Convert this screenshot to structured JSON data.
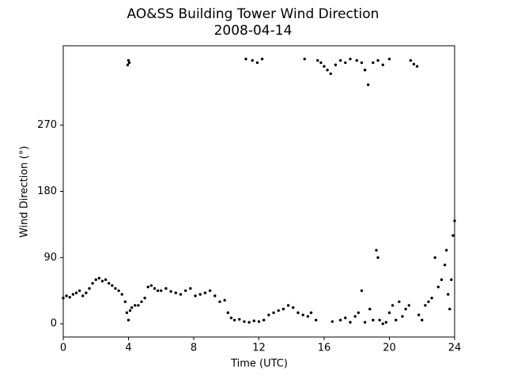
{
  "chart_data": {
    "type": "scatter",
    "title": "AO&SS Building Tower Wind Direction",
    "subtitle": "2008-04-14",
    "x_label": "Time (UTC)",
    "y_label": "Wind Direction (°)",
    "color": "#000000",
    "xlim": [
      0,
      24
    ],
    "xticks": [
      0,
      4,
      8,
      12,
      16,
      20,
      24
    ],
    "ylim": [
      -18,
      378
    ],
    "yticks": [
      0,
      90,
      180,
      270
    ],
    "series": [
      {
        "name": "Wind Direction",
        "x": [
          0.0,
          0.2,
          0.4,
          0.6,
          0.8,
          1.0,
          1.2,
          1.4,
          1.6,
          1.8,
          2.0,
          2.2,
          2.4,
          2.6,
          2.8,
          3.0,
          3.2,
          3.4,
          3.6,
          3.8,
          3.9,
          4.0,
          4.1,
          4.2,
          4.4,
          4.6,
          4.8,
          5.0,
          5.2,
          5.4,
          5.6,
          5.8,
          6.0,
          6.3,
          6.6,
          6.9,
          7.2,
          7.5,
          7.8,
          8.1,
          8.4,
          8.7,
          9.0,
          9.3,
          9.6,
          9.9,
          10.1,
          10.3,
          10.5,
          10.8,
          11.1,
          11.4,
          11.7,
          12.0,
          12.3,
          12.6,
          12.9,
          13.2,
          13.5,
          13.8,
          14.1,
          14.4,
          14.7,
          15.0,
          15.2,
          15.5,
          16.5,
          17.0,
          17.3,
          17.6,
          17.9,
          18.1,
          18.3,
          18.5,
          18.8,
          19.0,
          19.2,
          19.3,
          19.4,
          19.6,
          19.8,
          20.0,
          20.2,
          20.4,
          20.6,
          20.8,
          21.0,
          21.2,
          21.8,
          22.0,
          22.2,
          22.4,
          22.6,
          22.8,
          23.0,
          23.2,
          23.4,
          23.5,
          23.6,
          23.7,
          23.8,
          23.9,
          24.0,
          3.95,
          4.0,
          4.05,
          11.2,
          11.6,
          11.9,
          12.2,
          14.8,
          15.6,
          15.8,
          16.0,
          16.2,
          16.4,
          16.7,
          17.0,
          17.3,
          17.6,
          18.0,
          18.3,
          18.5,
          18.7,
          19.0,
          19.3,
          19.6,
          20.0,
          21.3,
          21.5,
          21.7
        ],
        "y": [
          35,
          38,
          36,
          40,
          42,
          45,
          38,
          42,
          48,
          55,
          60,
          62,
          58,
          60,
          55,
          52,
          48,
          45,
          40,
          30,
          15,
          5,
          18,
          22,
          25,
          25,
          30,
          35,
          50,
          52,
          48,
          45,
          45,
          48,
          44,
          42,
          40,
          45,
          48,
          38,
          40,
          42,
          45,
          38,
          30,
          32,
          15,
          8,
          5,
          6,
          3,
          2,
          4,
          3,
          5,
          12,
          15,
          18,
          20,
          25,
          22,
          15,
          12,
          10,
          15,
          5,
          3,
          5,
          8,
          2,
          10,
          15,
          45,
          2,
          20,
          5,
          100,
          90,
          5,
          0,
          2,
          15,
          25,
          5,
          30,
          10,
          20,
          25,
          12,
          5,
          25,
          30,
          35,
          90,
          50,
          60,
          80,
          100,
          40,
          20,
          60,
          120,
          140,
          352,
          358,
          355,
          360,
          358,
          355,
          360,
          360,
          358,
          355,
          350,
          345,
          340,
          352,
          358,
          355,
          360,
          358,
          355,
          345,
          325,
          355,
          358,
          352,
          360,
          358,
          353,
          350
        ]
      }
    ],
    "grid": false
  }
}
